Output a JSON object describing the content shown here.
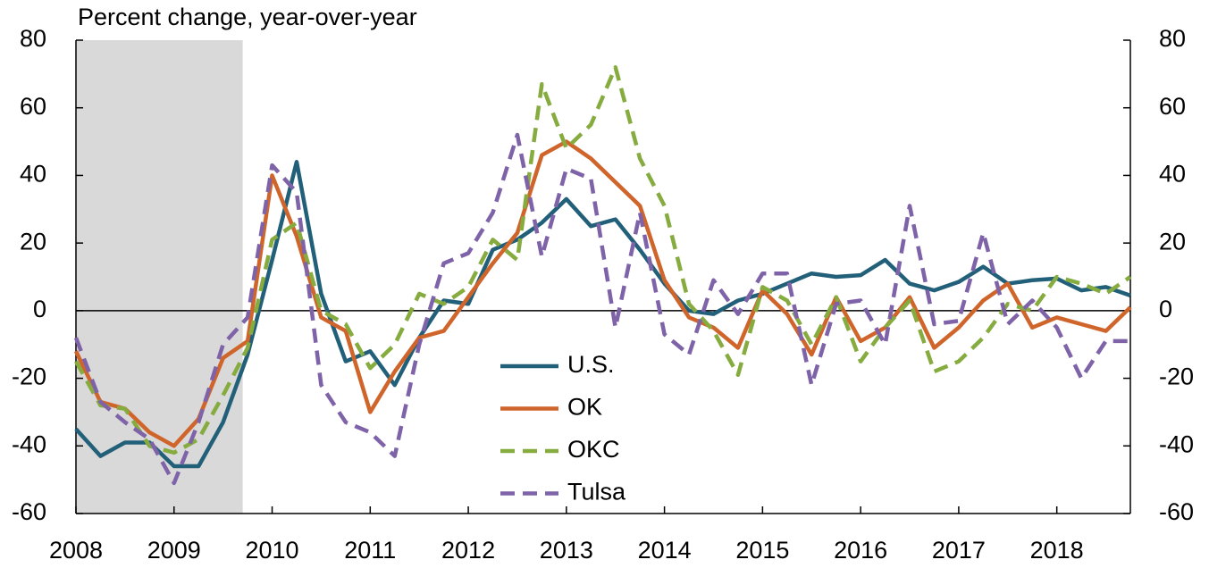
{
  "chart_data": {
    "type": "line",
    "title": "Percent change, year-over-year",
    "x": [
      2008,
      2008.25,
      2008.5,
      2008.75,
      2009,
      2009.25,
      2009.5,
      2009.75,
      2010,
      2010.25,
      2010.5,
      2010.75,
      2011,
      2011.25,
      2011.5,
      2011.75,
      2012,
      2012.25,
      2012.5,
      2012.75,
      2013,
      2013.25,
      2013.5,
      2013.75,
      2014,
      2014.25,
      2014.5,
      2014.75,
      2015,
      2015.25,
      2015.5,
      2015.75,
      2016,
      2016.25,
      2016.5,
      2016.75,
      2017,
      2017.25,
      2017.5,
      2017.75,
      2018,
      2018.25,
      2018.5,
      2018.75
    ],
    "series": [
      {
        "name": "U.S.",
        "color": "#22607a",
        "style": "solid",
        "values": [
          -35,
          -43,
          -39,
          -39,
          -46,
          -46,
          -33,
          -13,
          15,
          44,
          5,
          -15,
          -12,
          -22,
          -8,
          3,
          2,
          18,
          21,
          26,
          33,
          25,
          27,
          18,
          8,
          0,
          -1,
          3,
          5,
          8,
          11,
          10,
          10.5,
          15,
          8,
          6,
          8.5,
          13,
          8,
          9,
          9.5,
          6,
          7,
          4.5
        ]
      },
      {
        "name": "OK",
        "color": "#d0652b",
        "style": "solid",
        "values": [
          -12,
          -27,
          -29,
          -36,
          -40,
          -32,
          -14,
          -9,
          40,
          22,
          -2,
          -6,
          -30,
          -18,
          -8,
          -6,
          4,
          14,
          23,
          46,
          50,
          45,
          38,
          31,
          9,
          -2,
          -5,
          -11,
          6,
          -1,
          -13,
          4,
          -9,
          -5,
          4,
          -11,
          -5,
          3,
          8,
          -5,
          -2,
          -4,
          -6,
          1
        ]
      },
      {
        "name": "OKC",
        "color": "#86ab3f",
        "style": "dashed",
        "values": [
          -15,
          -28,
          -29,
          -40,
          -42,
          -38,
          -25,
          -11,
          21,
          26,
          0,
          -4,
          -17,
          -10,
          5,
          2,
          7,
          21,
          15,
          67,
          48,
          55,
          72,
          45,
          31,
          2,
          -6,
          -19,
          7,
          3,
          -10,
          4,
          -15,
          -5,
          3,
          -18,
          -15,
          -8,
          2,
          0,
          10,
          8,
          5,
          10
        ]
      },
      {
        "name": "Tulsa",
        "color": "#7f63a8",
        "style": "dashed",
        "values": [
          -8,
          -27,
          -33,
          -38,
          -51,
          -33,
          -10,
          -2,
          43,
          35,
          -22,
          -33,
          -36,
          -43,
          -10,
          14,
          17,
          29,
          52,
          16,
          42,
          39,
          -5,
          29,
          -7,
          -13,
          9,
          -1,
          11,
          11,
          -22,
          2,
          3,
          -10,
          31,
          -4,
          -3,
          23,
          -4,
          3,
          -5,
          -20,
          -9,
          -9
        ]
      }
    ],
    "xlim": [
      2008,
      2018.75
    ],
    "xticks": [
      2008,
      2009,
      2010,
      2011,
      2012,
      2013,
      2014,
      2015,
      2016,
      2017,
      2018
    ],
    "ylim": [
      -60,
      80
    ],
    "yticks": [
      -60,
      -40,
      -20,
      0,
      20,
      40,
      60,
      80
    ],
    "y2lim": [
      -60,
      80
    ],
    "y2ticks": [
      -60,
      -40,
      -20,
      0,
      20,
      40,
      60,
      80
    ],
    "shaded_region": [
      2008,
      2009.7
    ],
    "shade_color": "#d9d9d9",
    "grid": false,
    "legend": "center"
  }
}
